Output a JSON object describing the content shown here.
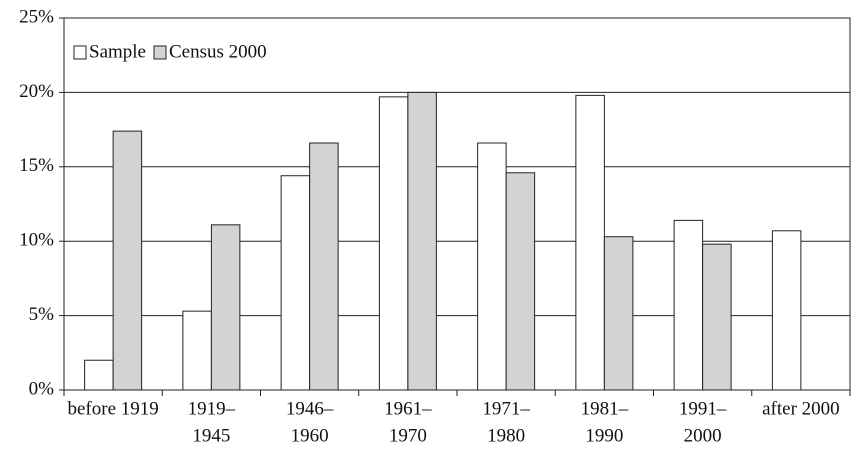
{
  "chart_data": {
    "type": "bar",
    "categories": [
      [
        "before 1919"
      ],
      [
        "1919–",
        "1945"
      ],
      [
        "1946–",
        "1960"
      ],
      [
        "1961–",
        "1970"
      ],
      [
        "1971–",
        "1980"
      ],
      [
        "1981–",
        "1990"
      ],
      [
        "1991–",
        "2000"
      ],
      [
        "after 2000"
      ]
    ],
    "series": [
      {
        "name": "Sample",
        "color": "#ffffff",
        "values": [
          2.0,
          5.3,
          14.4,
          19.7,
          16.6,
          19.8,
          11.4,
          10.7
        ]
      },
      {
        "name": "Census 2000",
        "color": "#d3d3d3",
        "values": [
          17.4,
          11.1,
          16.6,
          20.0,
          14.6,
          10.3,
          9.8,
          null
        ]
      }
    ],
    "ylim": [
      0,
      25
    ],
    "yticks": [
      {
        "value": 0,
        "label": "0%"
      },
      {
        "value": 5,
        "label": "5%"
      },
      {
        "value": 10,
        "label": "10%"
      },
      {
        "value": 15,
        "label": "15%"
      },
      {
        "value": 20,
        "label": "20%"
      },
      {
        "value": 25,
        "label": "25%"
      }
    ],
    "grid": true,
    "legend": "upper left"
  }
}
